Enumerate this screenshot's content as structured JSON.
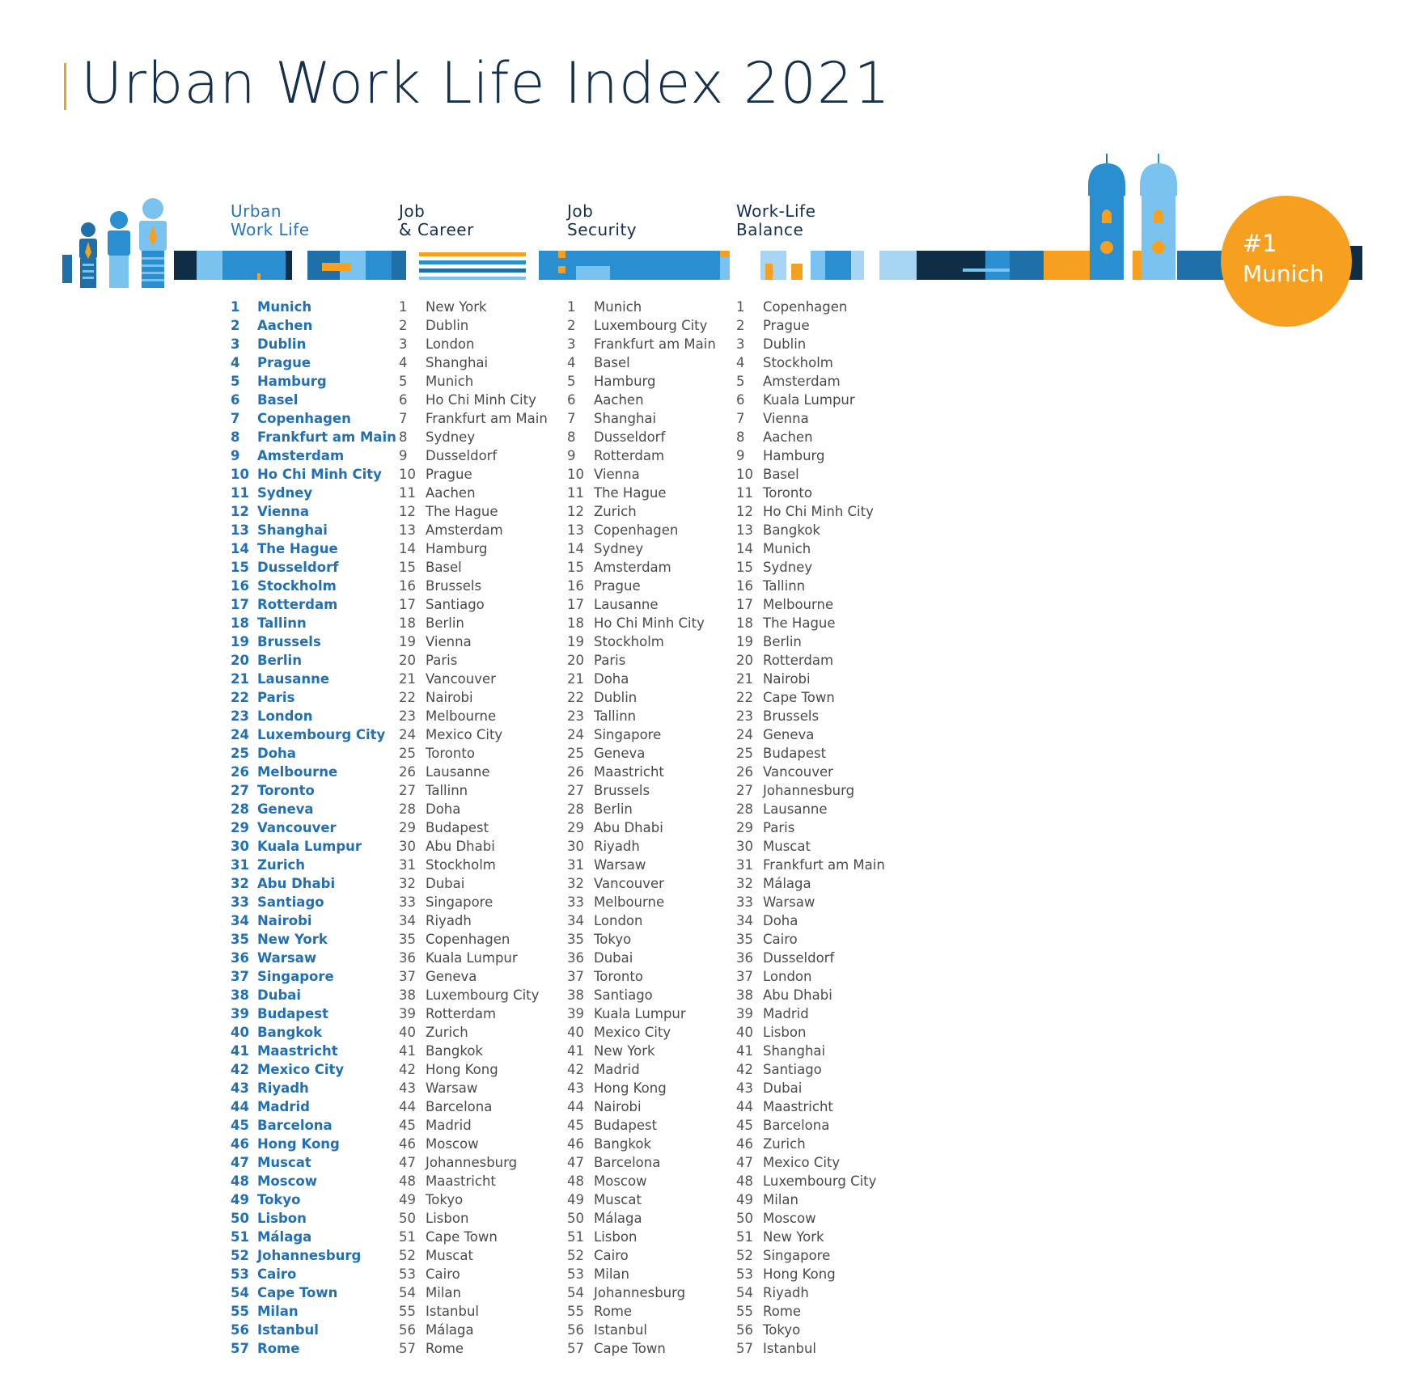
{
  "page": {
    "title": "Urban Work Life Index 2021"
  },
  "columns": [
    {
      "heading": [
        "Urban",
        "Work Life"
      ],
      "ranking": [
        "Munich",
        "Aachen",
        "Dublin",
        "Prague",
        "Hamburg",
        "Basel",
        "Copenhagen",
        "Frankfurt am Main",
        "Amsterdam",
        "Ho Chi Minh City",
        "Sydney",
        "Vienna",
        "Shanghai",
        "The Hague",
        "Dusseldorf",
        "Stockholm",
        "Rotterdam",
        "Tallinn",
        "Brussels",
        "Berlin",
        "Lausanne",
        "Paris",
        "London",
        "Luxembourg City",
        "Doha",
        "Melbourne",
        "Toronto",
        "Geneva",
        "Vancouver",
        "Kuala Lumpur",
        "Zurich",
        "Abu Dhabi",
        "Santiago",
        "Nairobi",
        "New York",
        "Warsaw",
        "Singapore",
        "Dubai",
        "Budapest",
        "Bangkok",
        "Maastricht",
        "Mexico City",
        "Riyadh",
        "Madrid",
        "Barcelona",
        "Hong Kong",
        "Muscat",
        "Moscow",
        "Tokyo",
        "Lisbon",
        "Málaga",
        "Johannesburg",
        "Cairo",
        "Cape Town",
        "Milan",
        "Istanbul",
        "Rome"
      ]
    },
    {
      "heading": [
        "Job",
        "& Career"
      ],
      "ranking": [
        "New York",
        "Dublin",
        "London",
        "Shanghai",
        "Munich",
        "Ho Chi Minh City",
        "Frankfurt am Main",
        "Sydney",
        "Dusseldorf",
        "Prague",
        "Aachen",
        "The Hague",
        "Amsterdam",
        "Hamburg",
        "Basel",
        "Brussels",
        "Santiago",
        "Berlin",
        "Vienna",
        "Paris",
        "Vancouver",
        "Nairobi",
        "Melbourne",
        "Mexico City",
        "Toronto",
        "Lausanne",
        "Tallinn",
        "Doha",
        "Budapest",
        "Abu Dhabi",
        "Stockholm",
        "Dubai",
        "Singapore",
        "Riyadh",
        "Copenhagen",
        "Kuala Lumpur",
        "Geneva",
        "Luxembourg City",
        "Rotterdam",
        "Zurich",
        "Bangkok",
        "Hong Kong",
        "Warsaw",
        "Barcelona",
        "Madrid",
        "Moscow",
        "Johannesburg",
        "Maastricht",
        "Tokyo",
        "Lisbon",
        "Cape Town",
        "Muscat",
        "Cairo",
        "Milan",
        "Istanbul",
        "Málaga",
        "Rome"
      ]
    },
    {
      "heading": [
        "Job",
        "Security"
      ],
      "ranking": [
        "Munich",
        "Luxembourg City",
        "Frankfurt am Main",
        "Basel",
        "Hamburg",
        "Aachen",
        "Shanghai",
        "Dusseldorf",
        "Rotterdam",
        "Vienna",
        "The Hague",
        "Zurich",
        "Copenhagen",
        "Sydney",
        "Amsterdam",
        "Prague",
        "Lausanne",
        "Ho Chi Minh City",
        "Stockholm",
        "Paris",
        "Doha",
        "Dublin",
        "Tallinn",
        "Singapore",
        "Geneva",
        "Maastricht",
        "Brussels",
        "Berlin",
        "Abu Dhabi",
        "Riyadh",
        "Warsaw",
        "Vancouver",
        "Melbourne",
        "London",
        "Tokyo",
        "Dubai",
        "Toronto",
        "Santiago",
        "Kuala Lumpur",
        "Mexico City",
        "New York",
        "Madrid",
        "Hong Kong",
        "Nairobi",
        "Budapest",
        "Bangkok",
        "Barcelona",
        "Moscow",
        "Muscat",
        "Málaga",
        "Lisbon",
        "Cairo",
        "Milan",
        "Johannesburg",
        "Rome",
        "Istanbul",
        "Cape Town"
      ]
    },
    {
      "heading": [
        "Work-Life",
        "Balance"
      ],
      "ranking": [
        "Copenhagen",
        "Prague",
        "Dublin",
        "Stockholm",
        "Amsterdam",
        "Kuala Lumpur",
        "Vienna",
        "Aachen",
        "Hamburg",
        "Basel",
        "Toronto",
        "Ho Chi Minh City",
        "Bangkok",
        "Munich",
        "Sydney",
        "Tallinn",
        "Melbourne",
        "The Hague",
        "Berlin",
        "Rotterdam",
        "Nairobi",
        "Cape Town",
        "Brussels",
        "Geneva",
        "Budapest",
        "Vancouver",
        "Johannesburg",
        "Lausanne",
        "Paris",
        "Muscat",
        "Frankfurt am Main",
        "Málaga",
        "Warsaw",
        "Doha",
        "Cairo",
        "Dusseldorf",
        "London",
        "Abu Dhabi",
        "Madrid",
        "Lisbon",
        "Shanghai",
        "Santiago",
        "Dubai",
        "Maastricht",
        "Barcelona",
        "Zurich",
        "Mexico City",
        "Luxembourg City",
        "Milan",
        "Moscow",
        "New York",
        "Singapore",
        "Hong Kong",
        "Riyadh",
        "Rome",
        "Tokyo",
        "Istanbul"
      ]
    }
  ],
  "badge": {
    "rank": "#1",
    "city": "Munich"
  },
  "colors": {
    "navy": "#15304d",
    "dark": "#0f2d45",
    "blue": "#2a8fd0",
    "mid_blue": "#1f6fa8",
    "light_blue": "#7ac3f0",
    "pale_blue": "#a7d6f5",
    "orange": "#f7a01f",
    "rank_blue": "#2270b3"
  }
}
